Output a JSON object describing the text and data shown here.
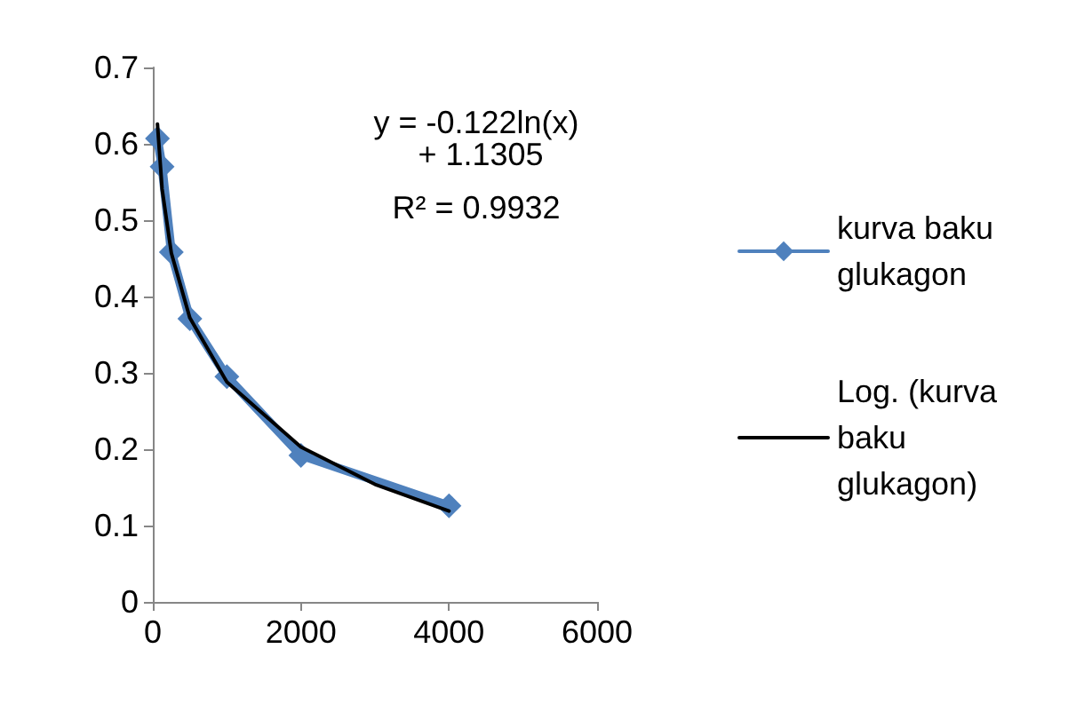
{
  "chart_data": {
    "type": "line",
    "xlim": [
      0,
      6000
    ],
    "xticks": [
      0,
      2000,
      4000,
      6000
    ],
    "ylim": [
      0,
      0.7
    ],
    "yticks": [
      0,
      0.1,
      0.2,
      0.3,
      0.4,
      0.5,
      0.6,
      0.7
    ],
    "grid": false,
    "legend": "right",
    "marker": "diamond",
    "line_style": "solid",
    "annotations": [
      "y = -0.122ln(x) + 1.1305",
      "R² = 0.9932"
    ],
    "series": [
      {
        "name": "kurva baku glukagon",
        "color": "#4f81bd",
        "x": [
          62.5,
          125,
          250,
          500,
          1000,
          2000,
          4000
        ],
        "values": [
          0.607,
          0.57,
          0.458,
          0.371,
          0.295,
          0.192,
          0.126
        ]
      },
      {
        "name": "Log. (kurva baku glukagon)",
        "color": "#000000",
        "marker": "none",
        "x": [
          62.5,
          125,
          250,
          500,
          1000,
          2000,
          3000,
          4000
        ],
        "values": [
          0.626,
          0.541,
          0.457,
          0.372,
          0.288,
          0.203,
          0.154,
          0.119
        ]
      }
    ]
  }
}
